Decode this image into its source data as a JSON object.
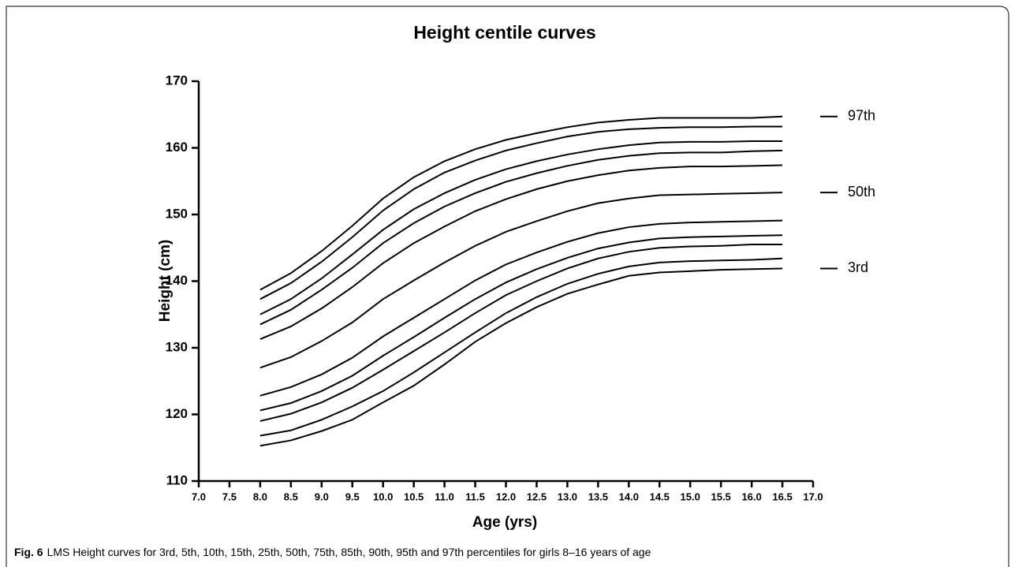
{
  "chart_data": {
    "type": "line",
    "title": "Height centile curves",
    "xlabel": "Age (yrs)",
    "ylabel": "Height (cm)",
    "color": "#000000",
    "x": [
      8.0,
      8.5,
      9.0,
      9.5,
      10.0,
      10.5,
      11.0,
      11.5,
      12.0,
      12.5,
      13.0,
      13.5,
      14.0,
      14.5,
      15.0,
      15.5,
      16.0,
      16.5
    ],
    "series": [
      {
        "label": "97th",
        "values": [
          138.7,
          141.2,
          144.5,
          148.3,
          152.4,
          155.6,
          158.0,
          159.8,
          161.2,
          162.2,
          163.1,
          163.8,
          164.2,
          164.5,
          164.5,
          164.5,
          164.5,
          164.7
        ]
      },
      {
        "values": [
          137.3,
          139.7,
          142.9,
          146.6,
          150.6,
          153.8,
          156.3,
          158.1,
          159.6,
          160.7,
          161.7,
          162.4,
          162.8,
          163.0,
          163.1,
          163.1,
          163.2,
          163.2
        ]
      },
      {
        "values": [
          135.0,
          137.3,
          140.4,
          144.0,
          147.7,
          150.8,
          153.2,
          155.2,
          156.8,
          158.0,
          159.0,
          159.8,
          160.4,
          160.8,
          160.9,
          160.9,
          161.0,
          161.0
        ]
      },
      {
        "values": [
          133.5,
          135.7,
          138.7,
          142.0,
          145.7,
          148.7,
          151.2,
          153.2,
          154.9,
          156.2,
          157.3,
          158.2,
          158.8,
          159.2,
          159.3,
          159.3,
          159.5,
          159.6
        ]
      },
      {
        "values": [
          131.3,
          133.2,
          135.9,
          139.1,
          142.7,
          145.7,
          148.2,
          150.5,
          152.3,
          153.8,
          155.0,
          155.9,
          156.6,
          157.0,
          157.2,
          157.2,
          157.3,
          157.4
        ]
      },
      {
        "label": "50th",
        "values": [
          127.0,
          128.6,
          131.0,
          133.8,
          137.3,
          140.1,
          142.8,
          145.3,
          147.4,
          149.0,
          150.5,
          151.7,
          152.4,
          152.9,
          153.0,
          153.1,
          153.2,
          153.3
        ]
      },
      {
        "values": [
          122.8,
          124.1,
          126.0,
          128.5,
          131.7,
          134.5,
          137.3,
          140.1,
          142.5,
          144.3,
          145.9,
          147.2,
          148.1,
          148.6,
          148.8,
          148.9,
          149.0,
          149.1
        ]
      },
      {
        "values": [
          120.6,
          121.7,
          123.5,
          125.8,
          128.8,
          131.6,
          134.5,
          137.3,
          139.8,
          141.8,
          143.5,
          144.9,
          145.8,
          146.4,
          146.6,
          146.7,
          146.8,
          146.9
        ]
      },
      {
        "values": [
          119.0,
          120.1,
          121.8,
          124.0,
          126.7,
          129.5,
          132.3,
          135.2,
          137.9,
          140.0,
          141.9,
          143.4,
          144.4,
          145.0,
          145.2,
          145.3,
          145.5,
          145.5
        ]
      },
      {
        "values": [
          116.8,
          117.6,
          119.2,
          121.2,
          123.5,
          126.3,
          129.3,
          132.3,
          135.2,
          137.6,
          139.6,
          141.1,
          142.2,
          142.8,
          143.0,
          143.1,
          143.2,
          143.4
        ]
      },
      {
        "label": "3rd",
        "values": [
          115.3,
          116.1,
          117.5,
          119.2,
          121.8,
          124.3,
          127.5,
          130.9,
          133.7,
          136.1,
          138.1,
          139.5,
          140.8,
          141.3,
          141.5,
          141.7,
          141.8,
          141.9
        ]
      }
    ],
    "xlim": [
      7,
      17
    ],
    "xticks": [
      {
        "value": 7,
        "label": "7.0"
      },
      7.5,
      {
        "value": 8,
        "label": "8.0"
      },
      8.5,
      {
        "value": 9,
        "label": "9.0"
      },
      9.5,
      {
        "value": 10,
        "label": "10.0"
      },
      10.5,
      {
        "value": 11,
        "label": "11.0"
      },
      11.5,
      {
        "value": 12,
        "label": "12.0"
      },
      12.5,
      {
        "value": 13,
        "label": "13.0"
      },
      13.5,
      {
        "value": 14,
        "label": "14.0"
      },
      14.5,
      {
        "value": 15,
        "label": "15.0"
      },
      15.5,
      {
        "value": 16,
        "label": "16.0"
      },
      16.5,
      {
        "value": 17,
        "label": "17.0"
      }
    ],
    "ylim": [
      110,
      170
    ],
    "yticks": [
      110,
      120,
      130,
      140,
      150,
      160,
      170
    ]
  },
  "caption": {
    "label": "Fig. 6",
    "text": "LMS Height curves for 3rd, 5th, 10th, 15th, 25th, 50th, 75th, 85th, 90th, 95th and 97th percentiles for girls 8–16 years of age"
  }
}
